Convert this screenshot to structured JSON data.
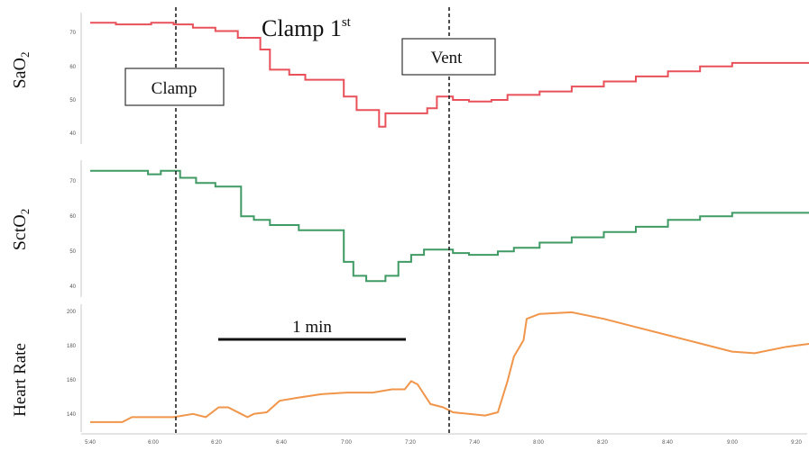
{
  "title": "Clamp 1",
  "title_superscript": "st",
  "annotations": {
    "clamp_label": "Clamp",
    "vent_label": "Vent",
    "scale_bar_label": "1 min"
  },
  "panels": {
    "sao2": {
      "ylabel_main": "SaO",
      "ylabel_sub": "2",
      "ticks": [
        "70",
        "60",
        "50",
        "40"
      ]
    },
    "scto2": {
      "ylabel_main": "SctO",
      "ylabel_sub": "2",
      "ticks": [
        "70",
        "60",
        "50",
        "40"
      ]
    },
    "hr": {
      "ylabel": "Heart Rate",
      "ticks": [
        "200",
        "180",
        "160",
        "140"
      ]
    }
  },
  "x_ticks": [
    "5:40",
    "6:00",
    "6:20",
    "6:40",
    "7:00",
    "7:20",
    "7:40",
    "8:00",
    "8:20",
    "8:40",
    "9:00",
    "9:20"
  ],
  "colors": {
    "sao2": "#e8505a",
    "scto2": "#3f9a63",
    "hr": "#f0954a",
    "marker": "#222222"
  },
  "chart_data": {
    "type": "line",
    "x_unit": "time (m:ss)",
    "events": [
      {
        "label": "Clamp",
        "x": "6:06"
      },
      {
        "label": "Vent",
        "x": "7:33"
      }
    ],
    "series": [
      {
        "name": "SaO2",
        "ylim": [
          38,
          75
        ],
        "points": [
          [
            "5:40",
            72
          ],
          [
            "5:48",
            72
          ],
          [
            "5:48",
            71.5
          ],
          [
            "5:59",
            71.5
          ],
          [
            "5:59",
            72
          ],
          [
            "6:06",
            72
          ],
          [
            "6:06",
            71.5
          ],
          [
            "6:12",
            71.5
          ],
          [
            "6:12",
            70.5
          ],
          [
            "6:19",
            70.5
          ],
          [
            "6:19",
            69.5
          ],
          [
            "6:26",
            69.5
          ],
          [
            "6:26",
            67.5
          ],
          [
            "6:33",
            67.5
          ],
          [
            "6:33",
            64
          ],
          [
            "6:36",
            64
          ],
          [
            "6:36",
            58
          ],
          [
            "6:42",
            58
          ],
          [
            "6:42",
            56.5
          ],
          [
            "6:47",
            56.5
          ],
          [
            "6:47",
            55
          ],
          [
            "6:59",
            55
          ],
          [
            "6:59",
            50
          ],
          [
            "7:03",
            50
          ],
          [
            "7:03",
            46
          ],
          [
            "7:10",
            46
          ],
          [
            "7:10",
            41
          ],
          [
            "7:12",
            41
          ],
          [
            "7:12",
            45
          ],
          [
            "7:25",
            45
          ],
          [
            "7:25",
            46.5
          ],
          [
            "7:28",
            46.5
          ],
          [
            "7:28",
            50
          ],
          [
            "7:33",
            50
          ],
          [
            "7:33",
            49
          ],
          [
            "7:38",
            49
          ],
          [
            "7:38",
            48.5
          ],
          [
            "7:45",
            48.5
          ],
          [
            "7:45",
            49
          ],
          [
            "7:50",
            49
          ],
          [
            "7:50",
            50.5
          ],
          [
            "8:00",
            50.5
          ],
          [
            "8:00",
            51.5
          ],
          [
            "8:10",
            51.5
          ],
          [
            "8:10",
            53
          ],
          [
            "8:20",
            53
          ],
          [
            "8:20",
            54.5
          ],
          [
            "8:30",
            54.5
          ],
          [
            "8:30",
            56
          ],
          [
            "8:40",
            56
          ],
          [
            "8:40",
            57.5
          ],
          [
            "8:50",
            57.5
          ],
          [
            "8:50",
            59
          ],
          [
            "9:00",
            59
          ],
          [
            "9:00",
            60
          ],
          [
            "9:25",
            60
          ]
        ]
      },
      {
        "name": "SctO2",
        "ylim": [
          38,
          75
        ],
        "points": [
          [
            "5:40",
            72
          ],
          [
            "5:58",
            72
          ],
          [
            "5:58",
            71
          ],
          [
            "6:02",
            71
          ],
          [
            "6:02",
            72
          ],
          [
            "6:08",
            72
          ],
          [
            "6:08",
            70
          ],
          [
            "6:13",
            70
          ],
          [
            "6:13",
            68.5
          ],
          [
            "6:19",
            68.5
          ],
          [
            "6:19",
            67.5
          ],
          [
            "6:27",
            67.5
          ],
          [
            "6:27",
            59
          ],
          [
            "6:31",
            59
          ],
          [
            "6:31",
            58
          ],
          [
            "6:36",
            58
          ],
          [
            "6:36",
            56.5
          ],
          [
            "6:45",
            56.5
          ],
          [
            "6:45",
            55
          ],
          [
            "6:59",
            55
          ],
          [
            "6:59",
            46
          ],
          [
            "7:02",
            46
          ],
          [
            "7:02",
            42
          ],
          [
            "7:06",
            42
          ],
          [
            "7:06",
            40.5
          ],
          [
            "7:12",
            40.5
          ],
          [
            "7:12",
            42
          ],
          [
            "7:16",
            42
          ],
          [
            "7:16",
            46
          ],
          [
            "7:20",
            46
          ],
          [
            "7:20",
            48
          ],
          [
            "7:24",
            48
          ],
          [
            "7:24",
            49.5
          ],
          [
            "7:33",
            49.5
          ],
          [
            "7:33",
            48.5
          ],
          [
            "7:38",
            48.5
          ],
          [
            "7:38",
            48
          ],
          [
            "7:47",
            48
          ],
          [
            "7:47",
            49
          ],
          [
            "7:52",
            49
          ],
          [
            "7:52",
            50
          ],
          [
            "8:00",
            50
          ],
          [
            "8:00",
            51.5
          ],
          [
            "8:10",
            51.5
          ],
          [
            "8:10",
            53
          ],
          [
            "8:20",
            53
          ],
          [
            "8:20",
            54.5
          ],
          [
            "8:30",
            54.5
          ],
          [
            "8:30",
            56
          ],
          [
            "8:40",
            56
          ],
          [
            "8:40",
            58
          ],
          [
            "8:50",
            58
          ],
          [
            "8:50",
            59
          ],
          [
            "9:00",
            59
          ],
          [
            "9:00",
            60
          ],
          [
            "9:25",
            60
          ]
        ]
      },
      {
        "name": "Heart Rate",
        "ylim": [
          130,
          208
        ],
        "points": [
          [
            "5:40",
            135
          ],
          [
            "5:50",
            135
          ],
          [
            "5:53",
            138
          ],
          [
            "6:06",
            138
          ],
          [
            "6:12",
            140
          ],
          [
            "6:16",
            138
          ],
          [
            "6:20",
            144
          ],
          [
            "6:23",
            144
          ],
          [
            "6:27",
            140
          ],
          [
            "6:29",
            138
          ],
          [
            "6:31",
            140
          ],
          [
            "6:35",
            141
          ],
          [
            "6:39",
            148
          ],
          [
            "6:45",
            150
          ],
          [
            "6:52",
            152
          ],
          [
            "7:00",
            153
          ],
          [
            "7:08",
            153
          ],
          [
            "7:14",
            155
          ],
          [
            "7:18",
            155
          ],
          [
            "7:20",
            160
          ],
          [
            "7:22",
            158
          ],
          [
            "7:26",
            146
          ],
          [
            "7:30",
            144
          ],
          [
            "7:33",
            141
          ],
          [
            "7:38",
            140
          ],
          [
            "7:43",
            139
          ],
          [
            "7:47",
            141
          ],
          [
            "7:50",
            160
          ],
          [
            "7:52",
            175
          ],
          [
            "7:55",
            185
          ],
          [
            "7:56",
            198
          ],
          [
            "8:00",
            201
          ],
          [
            "8:10",
            202
          ],
          [
            "8:20",
            198
          ],
          [
            "8:30",
            193
          ],
          [
            "8:40",
            188
          ],
          [
            "8:50",
            183
          ],
          [
            "9:00",
            178
          ],
          [
            "9:07",
            177
          ],
          [
            "9:17",
            181
          ],
          [
            "9:25",
            183
          ]
        ]
      }
    ]
  }
}
